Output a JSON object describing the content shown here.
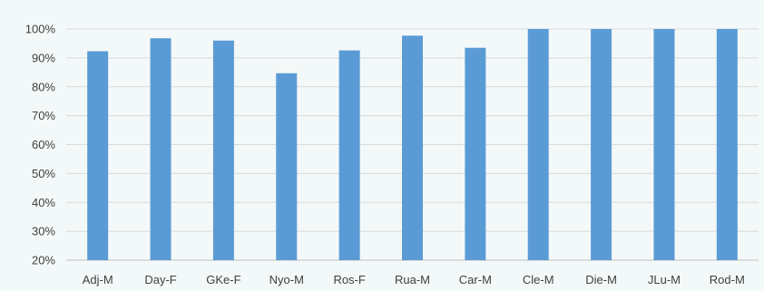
{
  "chart_data": {
    "type": "bar",
    "categories": [
      "Adj-M",
      "Day-F",
      "GKe-F",
      "Nyo-M",
      "Ros-F",
      "Rua-M",
      "Car-M",
      "Cle-M",
      "Die-M",
      "JLu-M",
      "Rod-M"
    ],
    "values": [
      92.3,
      96.8,
      96.0,
      84.7,
      92.6,
      97.7,
      93.5,
      100,
      100,
      100,
      100
    ],
    "yticks": [
      "20%",
      "30%",
      "40%",
      "50%",
      "60%",
      "70%",
      "80%",
      "90%",
      "100%"
    ],
    "ylim": [
      20,
      100
    ],
    "title": "",
    "xlabel": "",
    "ylabel": "",
    "grid": true,
    "legend": "none",
    "colors": {
      "bar": "#5b9bd5",
      "grid": "#d9d9d9",
      "axis": "#bfbfbf",
      "text": "#404040",
      "background": "#f3f9f9"
    }
  }
}
